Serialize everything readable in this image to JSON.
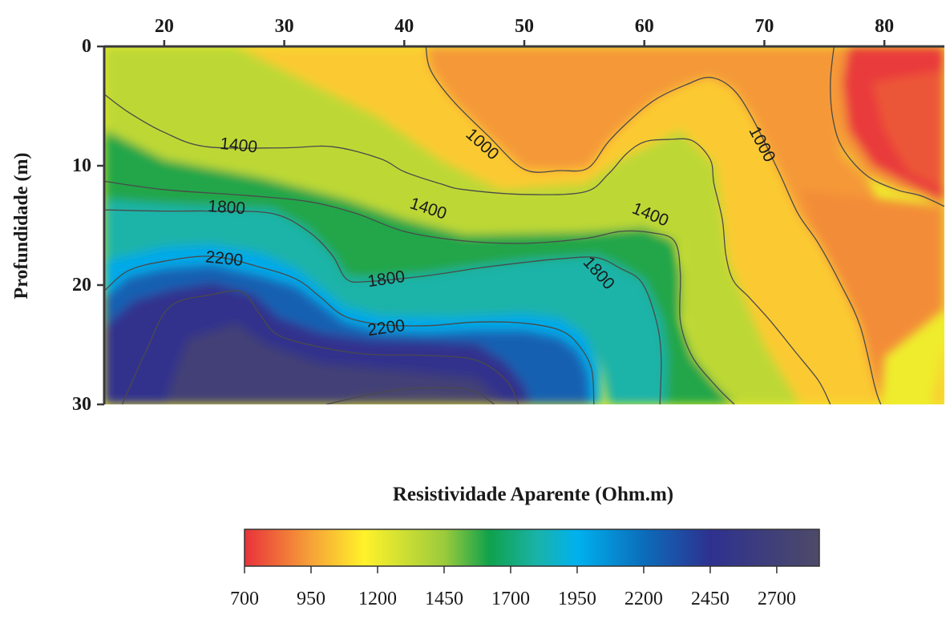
{
  "chart_data": {
    "type": "heatmap",
    "subtype": "filled-contour",
    "title": "",
    "xlabel": "",
    "ylabel": "Profundidade (m)",
    "x_ticks": [
      20,
      30,
      40,
      50,
      60,
      70,
      80
    ],
    "y_ticks": [
      0,
      10,
      20,
      30
    ],
    "xlim": [
      15,
      85
    ],
    "ylim": [
      0,
      30
    ],
    "y_inverted": true,
    "x_axis_position": "top",
    "colorbar": {
      "title": "Resistividade Aparente (Ohm.m)",
      "ticks": [
        700,
        950,
        1200,
        1450,
        1700,
        1950,
        2200,
        2450,
        2700
      ],
      "range": [
        700,
        2860
      ],
      "position": "bottom",
      "stops": [
        {
          "value": 700,
          "color": "#e8323a"
        },
        {
          "value": 950,
          "color": "#f6a238"
        },
        {
          "value": 1150,
          "color": "#fff22a"
        },
        {
          "value": 1450,
          "color": "#9ccb3c"
        },
        {
          "value": 1620,
          "color": "#0fa14b"
        },
        {
          "value": 1800,
          "color": "#1ab3a8"
        },
        {
          "value": 1950,
          "color": "#00b1ee"
        },
        {
          "value": 2200,
          "color": "#0b6dbb"
        },
        {
          "value": 2450,
          "color": "#2e3190"
        },
        {
          "value": 2860,
          "color": "#4d4a68"
        }
      ]
    },
    "contour_labels": [
      {
        "text": "1000",
        "x": 46.5,
        "y": 8.2,
        "angle": 42
      },
      {
        "text": "1000",
        "x": 69.8,
        "y": 8.2,
        "angle": 62
      },
      {
        "text": "1400",
        "x": 26.2,
        "y": 8.3,
        "angle": 6
      },
      {
        "text": "1400",
        "x": 42.0,
        "y": 13.6,
        "angle": 18
      },
      {
        "text": "1400",
        "x": 60.5,
        "y": 14.1,
        "angle": 22
      },
      {
        "text": "1800",
        "x": 25.2,
        "y": 13.5,
        "angle": 4
      },
      {
        "text": "1800",
        "x": 38.5,
        "y": 19.5,
        "angle": -8
      },
      {
        "text": "1800",
        "x": 56.2,
        "y": 19.0,
        "angle": 48
      },
      {
        "text": "2200",
        "x": 25.0,
        "y": 17.8,
        "angle": 6
      },
      {
        "text": "2200",
        "x": 38.5,
        "y": 23.6,
        "angle": -8
      }
    ],
    "contours": [
      {
        "level": 1000,
        "points": [
          [
            41.8,
            0
          ],
          [
            42.2,
            2
          ],
          [
            44,
            4.5
          ],
          [
            47,
            7.5
          ],
          [
            50,
            10.3
          ],
          [
            53,
            10.4
          ],
          [
            55.3,
            10.2
          ],
          [
            57,
            8
          ],
          [
            59,
            6
          ],
          [
            61,
            4.4
          ],
          [
            63.5,
            3.2
          ],
          [
            65.5,
            2.6
          ],
          [
            67.4,
            3.6
          ],
          [
            69,
            6
          ],
          [
            71.2,
            10.5
          ],
          [
            72.8,
            14
          ],
          [
            74.5,
            16.5
          ],
          [
            76.4,
            20
          ],
          [
            78,
            23.5
          ],
          [
            79.2,
            28.5
          ],
          [
            79.7,
            30
          ]
        ]
      },
      {
        "level": 1000,
        "points": [
          [
            75.8,
            0
          ],
          [
            75.5,
            3
          ],
          [
            75.7,
            6
          ],
          [
            76.5,
            8.5
          ],
          [
            78.5,
            10.8
          ],
          [
            81,
            12
          ],
          [
            83,
            12.5
          ],
          [
            85,
            13.4
          ]
        ]
      },
      {
        "level": 1400,
        "points": [
          [
            15,
            4
          ],
          [
            17,
            5.5
          ],
          [
            20,
            7.2
          ],
          [
            23.5,
            8.4
          ],
          [
            30,
            8.5
          ],
          [
            34,
            8.4
          ],
          [
            38,
            9.4
          ],
          [
            40,
            10.5
          ],
          [
            43,
            11.5
          ],
          [
            45,
            12
          ],
          [
            50,
            12.4
          ],
          [
            55,
            12.2
          ],
          [
            57,
            10.7
          ],
          [
            58.5,
            9
          ],
          [
            60,
            8
          ],
          [
            62,
            7.8
          ],
          [
            64,
            7.9
          ],
          [
            65.5,
            9.5
          ],
          [
            65.8,
            11.5
          ],
          [
            66.5,
            14.5
          ],
          [
            66.8,
            17.5
          ],
          [
            67.4,
            19.6
          ],
          [
            68.7,
            21
          ],
          [
            70.5,
            23
          ],
          [
            72.5,
            25.5
          ],
          [
            74.5,
            28
          ],
          [
            75.5,
            30
          ]
        ]
      },
      {
        "level": 1400,
        "points": [
          [
            15,
            11.3
          ],
          [
            20,
            12
          ],
          [
            27,
            12.5
          ],
          [
            32,
            13
          ],
          [
            36,
            14
          ],
          [
            40,
            15.5
          ],
          [
            45,
            16.3
          ],
          [
            50,
            16.5
          ],
          [
            55,
            16.1
          ],
          [
            58,
            15.5
          ],
          [
            60.5,
            15.6
          ],
          [
            62.5,
            16.3
          ],
          [
            63,
            19
          ],
          [
            63,
            23
          ],
          [
            64,
            26
          ],
          [
            66,
            28.5
          ],
          [
            67.5,
            30
          ]
        ]
      },
      {
        "level": 1800,
        "points": [
          [
            15,
            13.7
          ],
          [
            20,
            13.8
          ],
          [
            24,
            13.8
          ],
          [
            29,
            14
          ],
          [
            32,
            15.5
          ],
          [
            34,
            17.5
          ],
          [
            35.2,
            19.5
          ],
          [
            37,
            19.7
          ],
          [
            42,
            19.2
          ],
          [
            46,
            18.6
          ],
          [
            50,
            18.1
          ],
          [
            53,
            17.8
          ],
          [
            56,
            17.7
          ],
          [
            58,
            18.6
          ],
          [
            59.8,
            19.8
          ],
          [
            61,
            23
          ],
          [
            61.4,
            26
          ],
          [
            61.3,
            30
          ]
        ]
      },
      {
        "level": 2200,
        "points": [
          [
            15,
            20.5
          ],
          [
            17,
            18.8
          ],
          [
            20,
            18
          ],
          [
            24,
            17.6
          ],
          [
            28,
            18.5
          ],
          [
            31,
            19.5
          ],
          [
            33,
            21
          ],
          [
            35,
            22.6
          ],
          [
            38,
            23.3
          ],
          [
            42,
            23.4
          ],
          [
            46,
            23.1
          ],
          [
            50,
            23.2
          ],
          [
            53,
            23.8
          ],
          [
            54.5,
            25
          ],
          [
            55.6,
            27
          ],
          [
            55.8,
            30
          ]
        ]
      },
      {
        "level": 2600,
        "points": [
          [
            16.5,
            30
          ],
          [
            18.5,
            25.5
          ],
          [
            20.5,
            21.8
          ],
          [
            24,
            20.8
          ],
          [
            26.5,
            20.6
          ],
          [
            28,
            22.5
          ],
          [
            29.5,
            24.2
          ],
          [
            33,
            25.2
          ],
          [
            37,
            25.8
          ],
          [
            42,
            25.9
          ],
          [
            46,
            26.3
          ],
          [
            48.5,
            28
          ],
          [
            49.5,
            30
          ]
        ]
      },
      {
        "level": 2700,
        "points": [
          [
            33.5,
            30
          ],
          [
            38,
            29
          ],
          [
            42,
            28.6
          ],
          [
            45.5,
            28.8
          ],
          [
            47.5,
            30
          ]
        ]
      }
    ]
  }
}
